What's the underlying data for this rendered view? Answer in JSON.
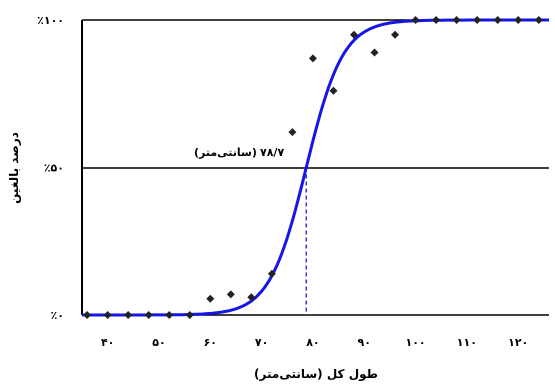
{
  "chart_data": {
    "type": "scatter",
    "title": "",
    "xlabel": "طول کل (سانتی‌متر)",
    "ylabel": "درصد بالغین",
    "xlim": [
      35,
      126
    ],
    "ylim": [
      0,
      100
    ],
    "x_ticks": [
      {
        "value": 40,
        "label": "۴۰"
      },
      {
        "value": 50,
        "label": "۵۰"
      },
      {
        "value": 60,
        "label": "۶۰"
      },
      {
        "value": 70,
        "label": "۷۰"
      },
      {
        "value": 80,
        "label": "۸۰"
      },
      {
        "value": 90,
        "label": "۹۰"
      },
      {
        "value": 100,
        "label": "۱۰۰"
      },
      {
        "value": 110,
        "label": "۱۱۰"
      },
      {
        "value": 120,
        "label": "۱۲۰"
      }
    ],
    "y_ticks": [
      {
        "value": 0,
        "label": "٪۰"
      },
      {
        "value": 50,
        "label": "٪۵۰"
      },
      {
        "value": 100,
        "label": "٪۱۰۰"
      }
    ],
    "grid": "horizontal lines at 0, 50 and 100",
    "series": [
      {
        "kind": "points",
        "marker": "diamond",
        "color": "#222222",
        "x": [
          36,
          40,
          44,
          48,
          52,
          56,
          60,
          64,
          68,
          72,
          76,
          80,
          84,
          88,
          92,
          96,
          100,
          104,
          108,
          112,
          116,
          120,
          124
        ],
        "y": [
          0,
          0,
          0,
          0,
          0,
          0,
          5.5,
          7,
          6,
          14,
          62,
          87,
          76,
          95,
          89,
          95,
          100,
          100,
          100,
          100,
          100,
          100,
          100
        ]
      },
      {
        "kind": "logistic_curve",
        "color": "#1515e6",
        "l50": 78.7,
        "slope": 0.28
      }
    ],
    "reference": {
      "x": 78.7,
      "y": 50,
      "label_value": "۷۸/۷",
      "label_unit": "(سانتی‌متر)",
      "line_color": "#2a2ae0"
    }
  }
}
